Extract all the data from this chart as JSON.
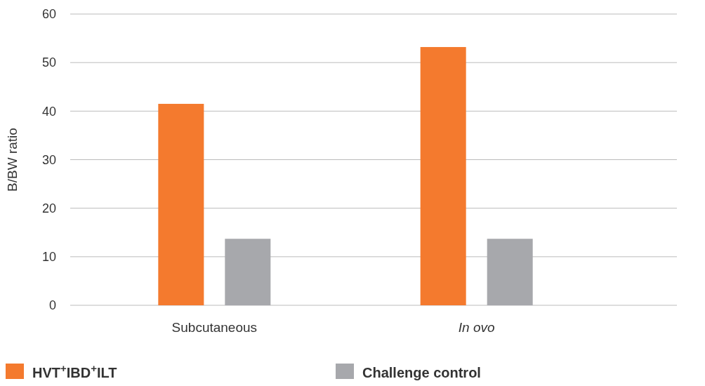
{
  "chart_data": {
    "type": "bar",
    "ylabel": "B/BW ratio",
    "categories": [
      "Subcutaneous",
      "In ovo"
    ],
    "series": [
      {
        "name": "HVT$^{+}$IBD$^{+}$ILT",
        "color": "#f47a2e",
        "values": [
          41.5,
          53.2
        ]
      },
      {
        "name": "Challenge control",
        "color": "#a7a8ac",
        "values": [
          13.7,
          13.7
        ]
      }
    ],
    "ylim": [
      0,
      60
    ],
    "yticks": [
      0,
      10,
      20,
      30,
      40,
      50,
      60
    ],
    "grid": "y",
    "legend": "bottom"
  }
}
